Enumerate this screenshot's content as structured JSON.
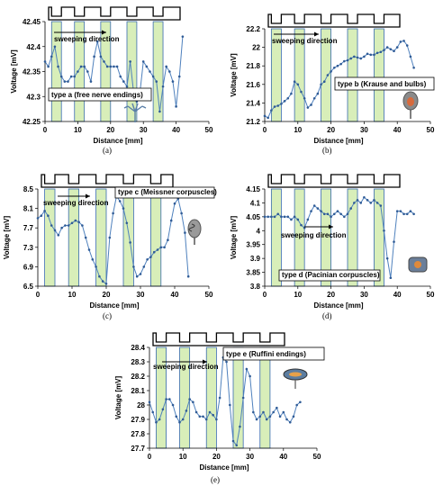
{
  "colors": {
    "stripe_fill": "#d8eeb9",
    "stripe_edge": "#3a6bb0",
    "line": "#4f81bd",
    "marker": "#2f5b96"
  },
  "icons": [
    "nerve-ending-icon",
    "krause-bulb-icon",
    "meissner-corpuscle-icon",
    "pacinian-corpuscle-icon",
    "ruffini-ending-icon"
  ],
  "chart_data": [
    {
      "type": "line",
      "caption": "(a)",
      "xlabel": "Distance  [mm]",
      "ylabel": "Voltage  [mV]",
      "xlim": [
        0,
        50
      ],
      "ylim": [
        42.25,
        42.45
      ],
      "xticks": [
        0,
        10,
        20,
        30,
        40,
        50
      ],
      "yticks": [
        "42.25",
        "42.3",
        "42.35",
        "42.4",
        "42.45"
      ],
      "stripes": [
        [
          2,
          5
        ],
        [
          9,
          12
        ],
        [
          17,
          20
        ],
        [
          25,
          28
        ],
        [
          33,
          36
        ]
      ],
      "annotation": "sweeping direction",
      "label": "type a (free nerve endings)",
      "icon": "nerve-ending-icon",
      "x": [
        0,
        1,
        2,
        3,
        4,
        5,
        6,
        7,
        8,
        9,
        10,
        11,
        12,
        13,
        14,
        15,
        16,
        17,
        18,
        19,
        20,
        21,
        22,
        23,
        24,
        25,
        26,
        27,
        28,
        29,
        30,
        31,
        32,
        33,
        34,
        35,
        36,
        37,
        38,
        39,
        40,
        41,
        42
      ],
      "y": [
        42.37,
        42.36,
        42.38,
        42.4,
        42.36,
        42.34,
        42.33,
        42.33,
        42.34,
        42.34,
        42.35,
        42.36,
        42.36,
        42.35,
        42.33,
        42.38,
        42.41,
        42.38,
        42.37,
        42.36,
        42.36,
        42.36,
        42.36,
        42.34,
        42.33,
        42.32,
        42.37,
        42.31,
        42.29,
        42.31,
        42.37,
        42.36,
        42.35,
        42.34,
        42.33,
        42.27,
        42.32,
        42.36,
        42.35,
        42.33,
        42.28,
        42.34,
        42.42
      ]
    },
    {
      "type": "line",
      "caption": "(b)",
      "xlabel": "Distance  [mm]",
      "ylabel": "Voltage  [mV]",
      "xlim": [
        0,
        50
      ],
      "ylim": [
        21.2,
        22.2
      ],
      "xticks": [
        0,
        10,
        20,
        30,
        40,
        50
      ],
      "yticks": [
        "21.2",
        "21.4",
        "21.6",
        "21.8",
        "22",
        "22.2"
      ],
      "stripes": [
        [
          2,
          5
        ],
        [
          9,
          12
        ],
        [
          17,
          20
        ],
        [
          25,
          28
        ],
        [
          33,
          36
        ]
      ],
      "annotation": "sweeping direction",
      "label": "type b (Krause and bulbs)",
      "icon": "krause-bulb-icon",
      "x": [
        0,
        1,
        2,
        3,
        4,
        5,
        6,
        7,
        8,
        9,
        10,
        11,
        12,
        13,
        14,
        15,
        16,
        17,
        18,
        19,
        20,
        21,
        22,
        23,
        24,
        25,
        26,
        27,
        28,
        29,
        30,
        31,
        32,
        33,
        34,
        35,
        36,
        37,
        38,
        39,
        40,
        41,
        42,
        43,
        44,
        45
      ],
      "y": [
        21.26,
        21.24,
        21.32,
        21.36,
        21.37,
        21.39,
        21.42,
        21.45,
        21.5,
        21.63,
        21.6,
        21.52,
        21.45,
        21.35,
        21.38,
        21.45,
        21.5,
        21.6,
        21.63,
        21.7,
        21.74,
        21.78,
        21.8,
        21.82,
        21.85,
        21.86,
        21.88,
        21.9,
        21.89,
        21.88,
        21.9,
        21.93,
        21.92,
        21.92,
        21.94,
        21.95,
        21.97,
        22.0,
        21.98,
        21.96,
        22.0,
        22.06,
        22.07,
        22.02,
        21.9,
        21.78
      ]
    },
    {
      "type": "line",
      "caption": "(c)",
      "xlabel": "Distance  [mm]",
      "ylabel": "Voltage  [mV]",
      "xlim": [
        0,
        50
      ],
      "ylim": [
        6.5,
        8.5
      ],
      "xticks": [
        0,
        10,
        20,
        30,
        40,
        50
      ],
      "yticks": [
        "6.5",
        "6.9",
        "7.3",
        "7.7",
        "8.1",
        "8.5"
      ],
      "stripes": [
        [
          2,
          5
        ],
        [
          9,
          12
        ],
        [
          17,
          20
        ],
        [
          25,
          28
        ],
        [
          33,
          36
        ]
      ],
      "annotation": "sweeping direction",
      "label": "type c (Meissner corpuscles)",
      "icon": "meissner-corpuscle-icon",
      "x": [
        0,
        1,
        2,
        3,
        4,
        5,
        6,
        7,
        8,
        9,
        10,
        11,
        12,
        13,
        14,
        15,
        16,
        17,
        18,
        19,
        20,
        21,
        22,
        23,
        24,
        25,
        26,
        27,
        28,
        29,
        30,
        31,
        32,
        33,
        34,
        35,
        36,
        37,
        38,
        39,
        40,
        41,
        42,
        43,
        44
      ],
      "y": [
        7.9,
        7.95,
        8.05,
        7.95,
        7.75,
        7.65,
        7.55,
        7.7,
        7.75,
        7.75,
        7.8,
        7.85,
        7.82,
        7.75,
        7.5,
        7.25,
        7.05,
        6.9,
        6.7,
        6.6,
        6.55,
        7.5,
        8.0,
        8.35,
        8.25,
        8.1,
        7.8,
        7.4,
        6.9,
        6.7,
        6.75,
        6.9,
        7.05,
        7.1,
        7.2,
        7.25,
        7.3,
        7.3,
        7.45,
        7.85,
        8.2,
        8.3,
        8.0,
        7.6,
        6.7
      ]
    },
    {
      "type": "line",
      "caption": "(d)",
      "xlabel": "Distance  [mm]",
      "ylabel": "Voltage  [mV]",
      "xlim": [
        0,
        50
      ],
      "ylim": [
        3.8,
        4.15
      ],
      "xticks": [
        0,
        10,
        20,
        30,
        40,
        50
      ],
      "yticks": [
        "3.8",
        "3.85",
        "3.9",
        "3.95",
        "4",
        "4.05",
        "4.1",
        "4.15"
      ],
      "stripes": [
        [
          2,
          5
        ],
        [
          9,
          12
        ],
        [
          17,
          20
        ],
        [
          25,
          28
        ],
        [
          33,
          36
        ]
      ],
      "annotation": "sweeping direction",
      "label": "type d (Pacinian corpuscles)",
      "icon": "pacinian-corpuscle-icon",
      "x": [
        0,
        1,
        2,
        3,
        4,
        5,
        6,
        7,
        8,
        9,
        10,
        11,
        12,
        13,
        14,
        15,
        16,
        17,
        18,
        19,
        20,
        21,
        22,
        23,
        24,
        25,
        26,
        27,
        28,
        29,
        30,
        31,
        32,
        33,
        34,
        35,
        36,
        37,
        38,
        39,
        40,
        41,
        42,
        43,
        44,
        45
      ],
      "y": [
        4.05,
        4.05,
        4.05,
        4.05,
        4.06,
        4.05,
        4.05,
        4.05,
        4.04,
        4.05,
        4.04,
        4.02,
        4.01,
        4.04,
        4.07,
        4.09,
        4.08,
        4.07,
        4.06,
        4.06,
        4.05,
        4.06,
        4.07,
        4.06,
        4.05,
        4.06,
        4.08,
        4.1,
        4.11,
        4.1,
        4.12,
        4.11,
        4.1,
        4.11,
        4.1,
        4.09,
        4.0,
        3.9,
        3.83,
        3.96,
        4.07,
        4.07,
        4.06,
        4.06,
        4.07,
        4.06
      ]
    },
    {
      "type": "line",
      "caption": "(e)",
      "xlabel": "Distance  [mm]",
      "ylabel": "Voltage  [mV]",
      "xlim": [
        0,
        50
      ],
      "ylim": [
        27.7,
        28.4
      ],
      "xticks": [
        0,
        10,
        20,
        30,
        40,
        50
      ],
      "yticks": [
        "27.7",
        "27.8",
        "27.9",
        "28",
        "28.1",
        "28.2",
        "28.3",
        "28.4"
      ],
      "stripes": [
        [
          2,
          5
        ],
        [
          9,
          12
        ],
        [
          17,
          20
        ],
        [
          25,
          28
        ],
        [
          33,
          36
        ]
      ],
      "annotation": "sweeping direction",
      "label": "type e (Ruffini endings)",
      "icon": "ruffini-ending-icon",
      "x": [
        0,
        1,
        2,
        3,
        4,
        5,
        6,
        7,
        8,
        9,
        10,
        11,
        12,
        13,
        14,
        15,
        16,
        17,
        18,
        19,
        20,
        21,
        22,
        23,
        24,
        25,
        26,
        27,
        28,
        29,
        30,
        31,
        32,
        33,
        34,
        35,
        36,
        37,
        38,
        39,
        40,
        41,
        42,
        43,
        44,
        45
      ],
      "y": [
        28.02,
        27.95,
        27.88,
        27.9,
        27.97,
        28.04,
        28.04,
        28.0,
        27.92,
        27.88,
        27.9,
        27.96,
        28.04,
        28.02,
        27.95,
        27.92,
        27.92,
        27.9,
        27.95,
        27.93,
        27.9,
        28.05,
        28.33,
        28.3,
        28.0,
        27.75,
        27.72,
        27.85,
        28.05,
        28.25,
        28.2,
        27.95,
        27.9,
        27.92,
        27.95,
        27.9,
        27.92,
        27.95,
        27.98,
        27.92,
        27.95,
        27.9,
        27.88,
        27.92,
        28.0,
        28.02
      ]
    }
  ]
}
